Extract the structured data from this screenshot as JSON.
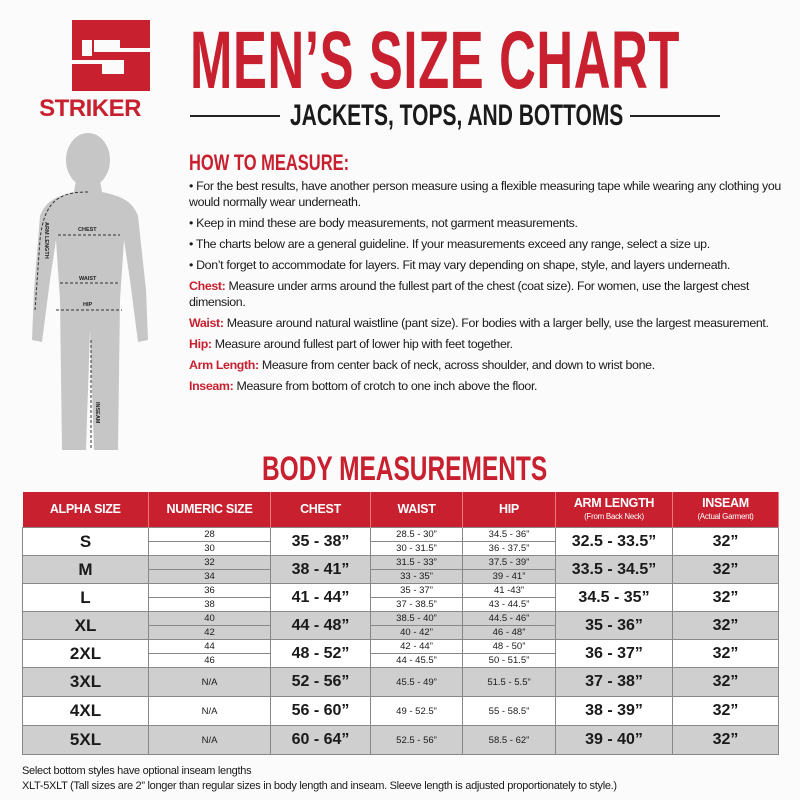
{
  "brand": {
    "name": "STRIKER",
    "color": "#c8202f"
  },
  "title": "MEN’S SIZE CHART",
  "subtitle": "JACKETS, TOPS, AND BOTTOMS",
  "figure": {
    "labels": {
      "chest": "CHEST",
      "waist": "WAIST",
      "hip": "HIP",
      "arm": "ARM LENGTH",
      "inseam": "INSEAM"
    }
  },
  "how_to": {
    "heading": "HOW TO MEASURE:",
    "bullets": [
      "• For the best results, have another person measure using a flexible measuring tape while wearing any clothing you would normally wear underneath.",
      "• Keep in mind these are body measurements, not garment measurements.",
      "• The charts below are a general guideline. If your measurements exceed any range, select a size up.",
      "• Don’t forget to accommodate for layers. Fit may vary depending on shape, style, and layers underneath."
    ],
    "definitions": [
      {
        "term": "Chest:",
        "text": " Measure under arms around the fullest part of the chest (coat size).  For women, use the largest chest dimension."
      },
      {
        "term": "Waist:",
        "text": " Measure around natural waistline (pant size). For bodies with a larger belly, use the largest measurement."
      },
      {
        "term": "Hip:",
        "text": " Measure around fullest part of lower hip with feet together."
      },
      {
        "term": "Arm Length:",
        "text": " Measure from center back of neck, across shoulder, and down to wrist bone."
      },
      {
        "term": "Inseam:",
        "text": " Measure from bottom of crotch to one inch above the floor."
      }
    ]
  },
  "table": {
    "heading": "BODY MEASUREMENTS",
    "headers": [
      {
        "label": "ALPHA SIZE"
      },
      {
        "label": "NUMERIC SIZE"
      },
      {
        "label": "CHEST"
      },
      {
        "label": "WAIST"
      },
      {
        "label": "HIP"
      },
      {
        "label": "ARM LENGTH",
        "note": "(From Back Neck)"
      },
      {
        "label": "INSEAM",
        "note": "(Actual Garment)"
      }
    ],
    "rows": [
      {
        "alpha": "S",
        "numeric": [
          "28",
          "30"
        ],
        "chest": "35 - 38”",
        "waist": [
          "28.5 - 30”",
          "30 - 31.5”"
        ],
        "hip": [
          "34.5 - 36”",
          "36 - 37.5”"
        ],
        "arm": "32.5 - 33.5”",
        "inseam": "32”"
      },
      {
        "alpha": "M",
        "numeric": [
          "32",
          "34"
        ],
        "chest": "38 - 41”",
        "waist": [
          "31.5 - 33”",
          "33 - 35”"
        ],
        "hip": [
          "37.5 - 39”",
          "39 - 41”"
        ],
        "arm": "33.5 - 34.5”",
        "inseam": "32”"
      },
      {
        "alpha": "L",
        "numeric": [
          "36",
          "38"
        ],
        "chest": "41 - 44”",
        "waist": [
          "35 - 37”",
          "37 - 38.5”"
        ],
        "hip": [
          "41 -43”",
          "43 - 44.5”"
        ],
        "arm": "34.5 - 35”",
        "inseam": "32”"
      },
      {
        "alpha": "XL",
        "numeric": [
          "40",
          "42"
        ],
        "chest": "44 - 48”",
        "waist": [
          "38.5 - 40”",
          "40 - 42”"
        ],
        "hip": [
          "44.5 - 46”",
          "46 - 48”"
        ],
        "arm": "35 - 36”",
        "inseam": "32”"
      },
      {
        "alpha": "2XL",
        "numeric": [
          "44",
          "46"
        ],
        "chest": "48 - 52”",
        "waist": [
          "42 - 44”",
          "44 - 45.5”"
        ],
        "hip": [
          "48 - 50”",
          "50 - 51.5”"
        ],
        "arm": "36 - 37”",
        "inseam": "32”"
      },
      {
        "alpha": "3XL",
        "numeric": [
          "N/A"
        ],
        "chest": "52 - 56”",
        "waist": [
          "45.5 - 49”"
        ],
        "hip": [
          "51.5 - 5.5”"
        ],
        "arm": "37 - 38”",
        "inseam": "32”"
      },
      {
        "alpha": "4XL",
        "numeric": [
          "N/A"
        ],
        "chest": "56 - 60”",
        "waist": [
          "49 - 52.5”"
        ],
        "hip": [
          "55 - 58.5”"
        ],
        "arm": "38 - 39”",
        "inseam": "32”"
      },
      {
        "alpha": "5XL",
        "numeric": [
          "N/A"
        ],
        "chest": "60 - 64”",
        "waist": [
          "52.5 - 56”"
        ],
        "hip": [
          "58.5 - 62”"
        ],
        "arm": "39 - 40”",
        "inseam": "32”"
      }
    ]
  },
  "footnotes": [
    "Select bottom styles have optional inseam lengths",
    "XLT-5XLT (Tall sizes are 2” longer than regular sizes in body length and inseam. Sleeve length is adjusted proportionately to style.)"
  ]
}
